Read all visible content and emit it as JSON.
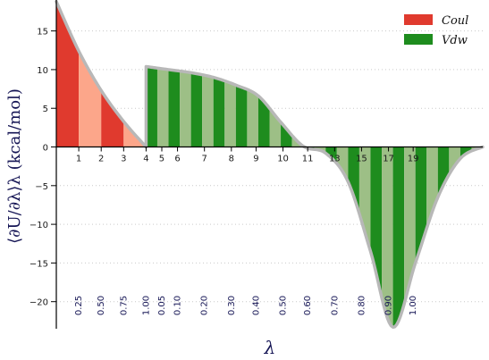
{
  "chart_data": {
    "type": "area",
    "ylabel": "⟨∂U/∂λ⟩λ (kcal/mol)",
    "xlabel": "λ",
    "ylim": [
      -23.5,
      19
    ],
    "yticks": [
      -20,
      -15,
      -10,
      -5,
      0,
      5,
      10,
      15
    ],
    "yticklabels": [
      "−20",
      "−15",
      "−10",
      "−5",
      "0",
      "5",
      "10",
      "15"
    ],
    "grid": "horizontal dotted",
    "legend_position": "top-right",
    "x_index_labels": [
      "1",
      "2",
      "3",
      "4",
      "5",
      "6",
      "7",
      "8",
      "9",
      "10",
      "11",
      "13",
      "15",
      "17",
      "19"
    ],
    "lambda_labels": [
      "0.25",
      "0.50",
      "0.75",
      "1.00",
      "0.05",
      "0.10",
      "0.20",
      "0.30",
      "0.40",
      "0.50",
      "0.60",
      "0.70",
      "0.80",
      "0.90",
      "1.00"
    ],
    "series": [
      {
        "name": "Coul",
        "color_dark": "#e03a2e",
        "color_light": "#fca68a",
        "x": [
          0,
          1,
          2,
          3,
          4
        ],
        "y": [
          18.8,
          12.4,
          7.3,
          3.3,
          0
        ]
      },
      {
        "name": "Vdw",
        "color_dark": "#1e8c1e",
        "color_light": "#9dbf86",
        "x": [
          4,
          4.5,
          5,
          6,
          7,
          8,
          9,
          10,
          11,
          12,
          13,
          14,
          15,
          16,
          17,
          18,
          19
        ],
        "y": [
          10.4,
          10.2,
          10.0,
          9.6,
          9.0,
          8.0,
          6.6,
          3.2,
          0.1,
          -0.8,
          -4.5,
          -13.5,
          -23.3,
          -15.0,
          -6.5,
          -1.5,
          0
        ]
      }
    ]
  }
}
